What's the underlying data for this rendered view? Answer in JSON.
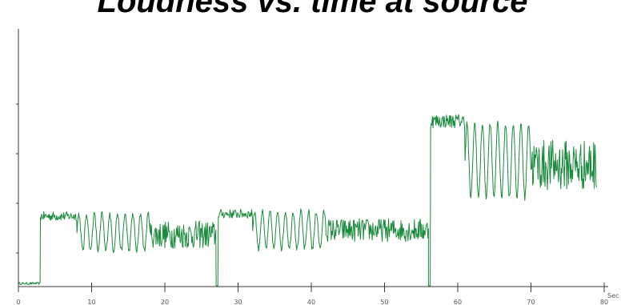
{
  "title": "Loudness vs. time at source",
  "colors": {
    "signal": "#1a8a3c",
    "axis": "#3a3a3a",
    "background": "#ffffff"
  },
  "chart_data": {
    "type": "line",
    "title": "Loudness vs. time at source",
    "xlabel": "",
    "ylabel": "",
    "x_unit": "Sec",
    "xlim": [
      0,
      80
    ],
    "ylim": [
      0,
      10
    ],
    "x_ticks": [
      "0",
      "10",
      "20",
      "30",
      "40",
      "50",
      "60",
      "70",
      "80"
    ],
    "grid": false,
    "series": [
      {
        "segments": [
          {
            "start": 0.0,
            "end": 3.0,
            "center": 0.1,
            "amp": 0.05,
            "pattern": "noise"
          },
          {
            "start": 3.0,
            "end": 8.0,
            "center": 3.0,
            "amp": 0.2,
            "pattern": "noise"
          },
          {
            "start": 8.0,
            "end": 18.0,
            "center": 2.3,
            "amp": 0.8,
            "pattern": "oscillation"
          },
          {
            "start": 18.0,
            "end": 27.0,
            "center": 2.2,
            "amp": 0.6,
            "pattern": "dense"
          },
          {
            "start": 27.0,
            "end": 27.3,
            "center": 0.0,
            "amp": 0.0,
            "pattern": "dip"
          },
          {
            "start": 27.3,
            "end": 32.0,
            "center": 3.1,
            "amp": 0.2,
            "pattern": "noise"
          },
          {
            "start": 32.0,
            "end": 42.0,
            "center": 2.4,
            "amp": 0.8,
            "pattern": "oscillation"
          },
          {
            "start": 42.0,
            "end": 56.0,
            "center": 2.4,
            "amp": 0.5,
            "pattern": "dense"
          },
          {
            "start": 56.0,
            "end": 56.3,
            "center": 0.0,
            "amp": 0.0,
            "pattern": "dip"
          },
          {
            "start": 56.3,
            "end": 61.0,
            "center": 7.1,
            "amp": 0.3,
            "pattern": "noise"
          },
          {
            "start": 61.0,
            "end": 70.0,
            "center": 5.4,
            "amp": 1.6,
            "pattern": "oscillation"
          },
          {
            "start": 70.0,
            "end": 79.0,
            "center": 5.2,
            "amp": 1.1,
            "pattern": "dense"
          }
        ]
      }
    ]
  }
}
